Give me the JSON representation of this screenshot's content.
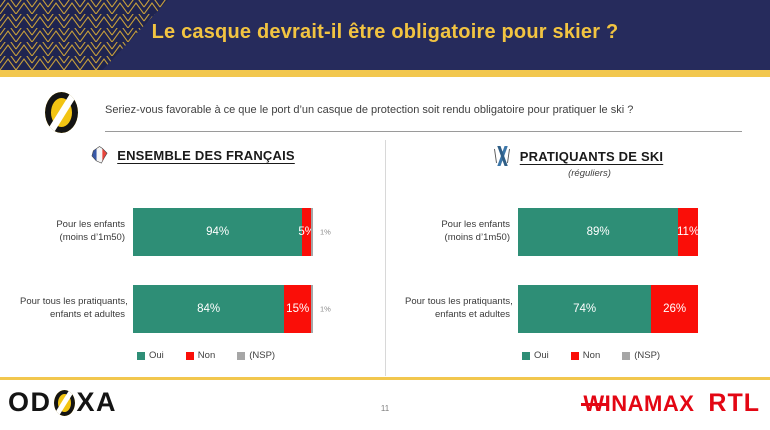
{
  "header": {
    "title": "Le casque devrait-il être obligatoire pour skier ?"
  },
  "question": {
    "text": "Seriez-vous favorable à ce que le port d’un casque de protection soit rendu obligatoire pour pratiquer le ski ?"
  },
  "colors": {
    "header_navy": "#262B5C",
    "gold": "#F2C74E",
    "title_gold": "#F2C441",
    "oui_green": "#2E8E76",
    "non_red": "#FA0E08",
    "nsp_grey": "#A6A6A6",
    "brand_red": "#E30613"
  },
  "chart_data": [
    {
      "type": "bar",
      "orientation": "horizontal",
      "stacked": true,
      "title": "ENSEMBLE DES FRANÇAIS",
      "subtitle": "",
      "icon": "france-map-icon",
      "categories": [
        "Pour les enfants\n(moins d’1m50)",
        "Pour tous les pratiquants,\nenfants et adultes"
      ],
      "series": [
        {
          "name": "Oui",
          "color": "#2E8E76",
          "values": [
            94,
            84
          ]
        },
        {
          "name": "Non",
          "color": "#FA0E08",
          "values": [
            5,
            15
          ]
        },
        {
          "name": "(NSP)",
          "color": "#A6A6A6",
          "values": [
            1,
            1
          ],
          "label_outside": true
        }
      ],
      "xlim": [
        0,
        100
      ],
      "value_suffix": "%",
      "legend_position": "bottom",
      "grid": false
    },
    {
      "type": "bar",
      "orientation": "horizontal",
      "stacked": true,
      "title": "PRATIQUANTS DE SKI",
      "subtitle": "(réguliers)",
      "icon": "crossed-skis-icon",
      "categories": [
        "Pour les enfants\n(moins d’1m50)",
        "Pour tous les pratiquants,\nenfants et adultes"
      ],
      "series": [
        {
          "name": "Oui",
          "color": "#2E8E76",
          "values": [
            89,
            74
          ]
        },
        {
          "name": "Non",
          "color": "#FA0E08",
          "values": [
            11,
            26
          ]
        },
        {
          "name": "(NSP)",
          "color": "#A6A6A6",
          "values": [
            0,
            0
          ],
          "label_outside": true
        }
      ],
      "xlim": [
        0,
        100
      ],
      "value_suffix": "%",
      "legend_position": "bottom",
      "grid": false
    }
  ],
  "footer": {
    "page_number": "11",
    "odoxa_prefix": "OD",
    "odoxa_suffix": "XA",
    "winamax_w": "W",
    "winamax_rest": "INAMAX",
    "rtl": "RTL"
  }
}
